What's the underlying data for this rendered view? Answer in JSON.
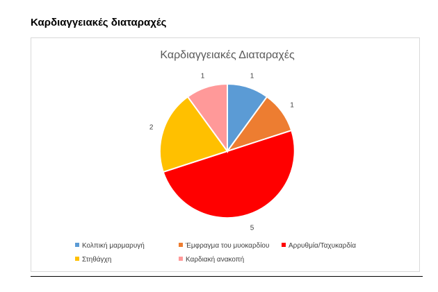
{
  "page": {
    "heading": "Καρδιαγγειακές διαταραχές"
  },
  "chart_data": {
    "type": "pie",
    "title": "Καρδιαγγειακές Διαταραχές",
    "categories": [
      "Κολπική μαρμαρυγή",
      "Έμφραγμα του μυοκαρδίου",
      "Αρρυθμία/Ταχυκαρδία",
      "Στηθάγχη",
      "Καρδιακή ανακοπή"
    ],
    "values": [
      1,
      1,
      5,
      2,
      1
    ],
    "colors": [
      "#5b9bd5",
      "#ed7d31",
      "#ff0000",
      "#ffc000",
      "#ff9999"
    ],
    "data_labels": [
      "1",
      "1",
      "5",
      "2",
      "1"
    ],
    "legend_position": "bottom"
  }
}
